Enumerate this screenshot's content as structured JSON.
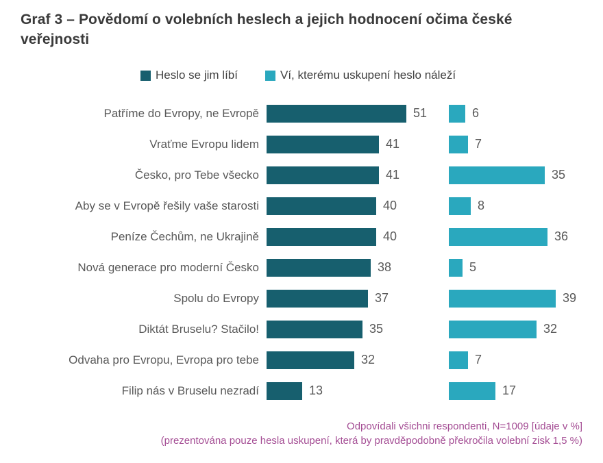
{
  "title": "Graf 3 – Povědomí o volebních heslech a jejich hodnocení očima české veřejnosti",
  "legend": [
    {
      "label": "Heslo se jim líbí",
      "color": "#175f6e"
    },
    {
      "label": "Ví, kterému uskupení heslo náleží",
      "color": "#2aa8be"
    }
  ],
  "footer": {
    "line1": "Odpovídali všichni respondenti, N=1009 [údaje v %]",
    "line2": "(prezentována pouze hesla uskupení, která by pravděpodobně překročila volební zisk 1,5 %)",
    "color": "#a44d94"
  },
  "chart_data": {
    "type": "bar",
    "orientation": "horizontal",
    "title": "Graf 3 – Povědomí o volebních heslech a jejich hodnocení očima české veřejnosti",
    "categories": [
      "Patříme do Evropy, ne Evropě",
      "Vraťme Evropu lidem",
      "Česko, pro Tebe všecko",
      "Aby se v Evropě řešily vaše starosti",
      "Peníze Čechům, ne Ukrajině",
      "Nová generace pro moderní Česko",
      "Spolu do Evropy",
      "Diktát Bruselu? Stačilo!",
      "Odvaha pro Evropu, Evropa pro tebe",
      "Filip nás v Bruselu nezradí"
    ],
    "series": [
      {
        "name": "Heslo se jim líbí",
        "color": "#175f6e",
        "values": [
          51,
          41,
          41,
          40,
          40,
          38,
          37,
          35,
          32,
          13
        ]
      },
      {
        "name": "Ví, kterému uskupení heslo náleží",
        "color": "#2aa8be",
        "values": [
          6,
          7,
          35,
          8,
          36,
          5,
          39,
          32,
          7,
          17
        ]
      }
    ],
    "value_labels": true,
    "units": "%",
    "xlim": [
      0,
      55
    ],
    "grid": false,
    "legend_position": "top"
  }
}
